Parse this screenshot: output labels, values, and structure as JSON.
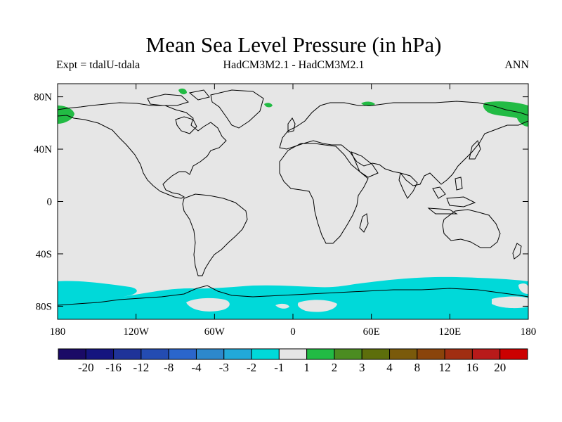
{
  "title": "Mean Sea Level Pressure (in hPa)",
  "subtitle_left": "Expt = tdalU-tdala",
  "subtitle_center": "HadCM3M2.1 - HadCM3M2.1",
  "subtitle_right": "ANN",
  "map": {
    "projection": "equirectangular",
    "lon_range": [
      -180,
      180
    ],
    "lat_range": [
      -90,
      90
    ],
    "background_color": "#e6e6e6",
    "x_tick_labels": [
      {
        "lon": -180,
        "label": "180"
      },
      {
        "lon": -120,
        "label": "120W"
      },
      {
        "lon": -60,
        "label": "60W"
      },
      {
        "lon": 0,
        "label": "0"
      },
      {
        "lon": 60,
        "label": "60E"
      },
      {
        "lon": 120,
        "label": "120E"
      },
      {
        "lon": 180,
        "label": "180"
      }
    ],
    "y_tick_labels": [
      {
        "lat": 80,
        "label": "80N"
      },
      {
        "lat": 40,
        "label": "40N"
      },
      {
        "lat": 0,
        "label": "0"
      },
      {
        "lat": -40,
        "label": "40S"
      },
      {
        "lat": -80,
        "label": "80S"
      }
    ]
  },
  "colorbar": {
    "colors": [
      "#1a0a66",
      "#15157f",
      "#1f3399",
      "#244cb2",
      "#2b66cc",
      "#2d88cc",
      "#22a9d9",
      "#00d9d9",
      "#e6e6e6",
      "#22bb44",
      "#4b8c21",
      "#5d6e0b",
      "#7a5a0b",
      "#8a440b",
      "#a02e12",
      "#b81a1a",
      "#cc0000"
    ],
    "labels": [
      "-20",
      "-16",
      "-12",
      "-8",
      "-4",
      "-3",
      "-2",
      "-1",
      "1",
      "2",
      "3",
      "4",
      "8",
      "12",
      "16",
      "20"
    ]
  },
  "fill_colors": {
    "negative_small": "#00d9d9",
    "positive_small": "#22bb44",
    "neutral": "#e6e6e6"
  }
}
